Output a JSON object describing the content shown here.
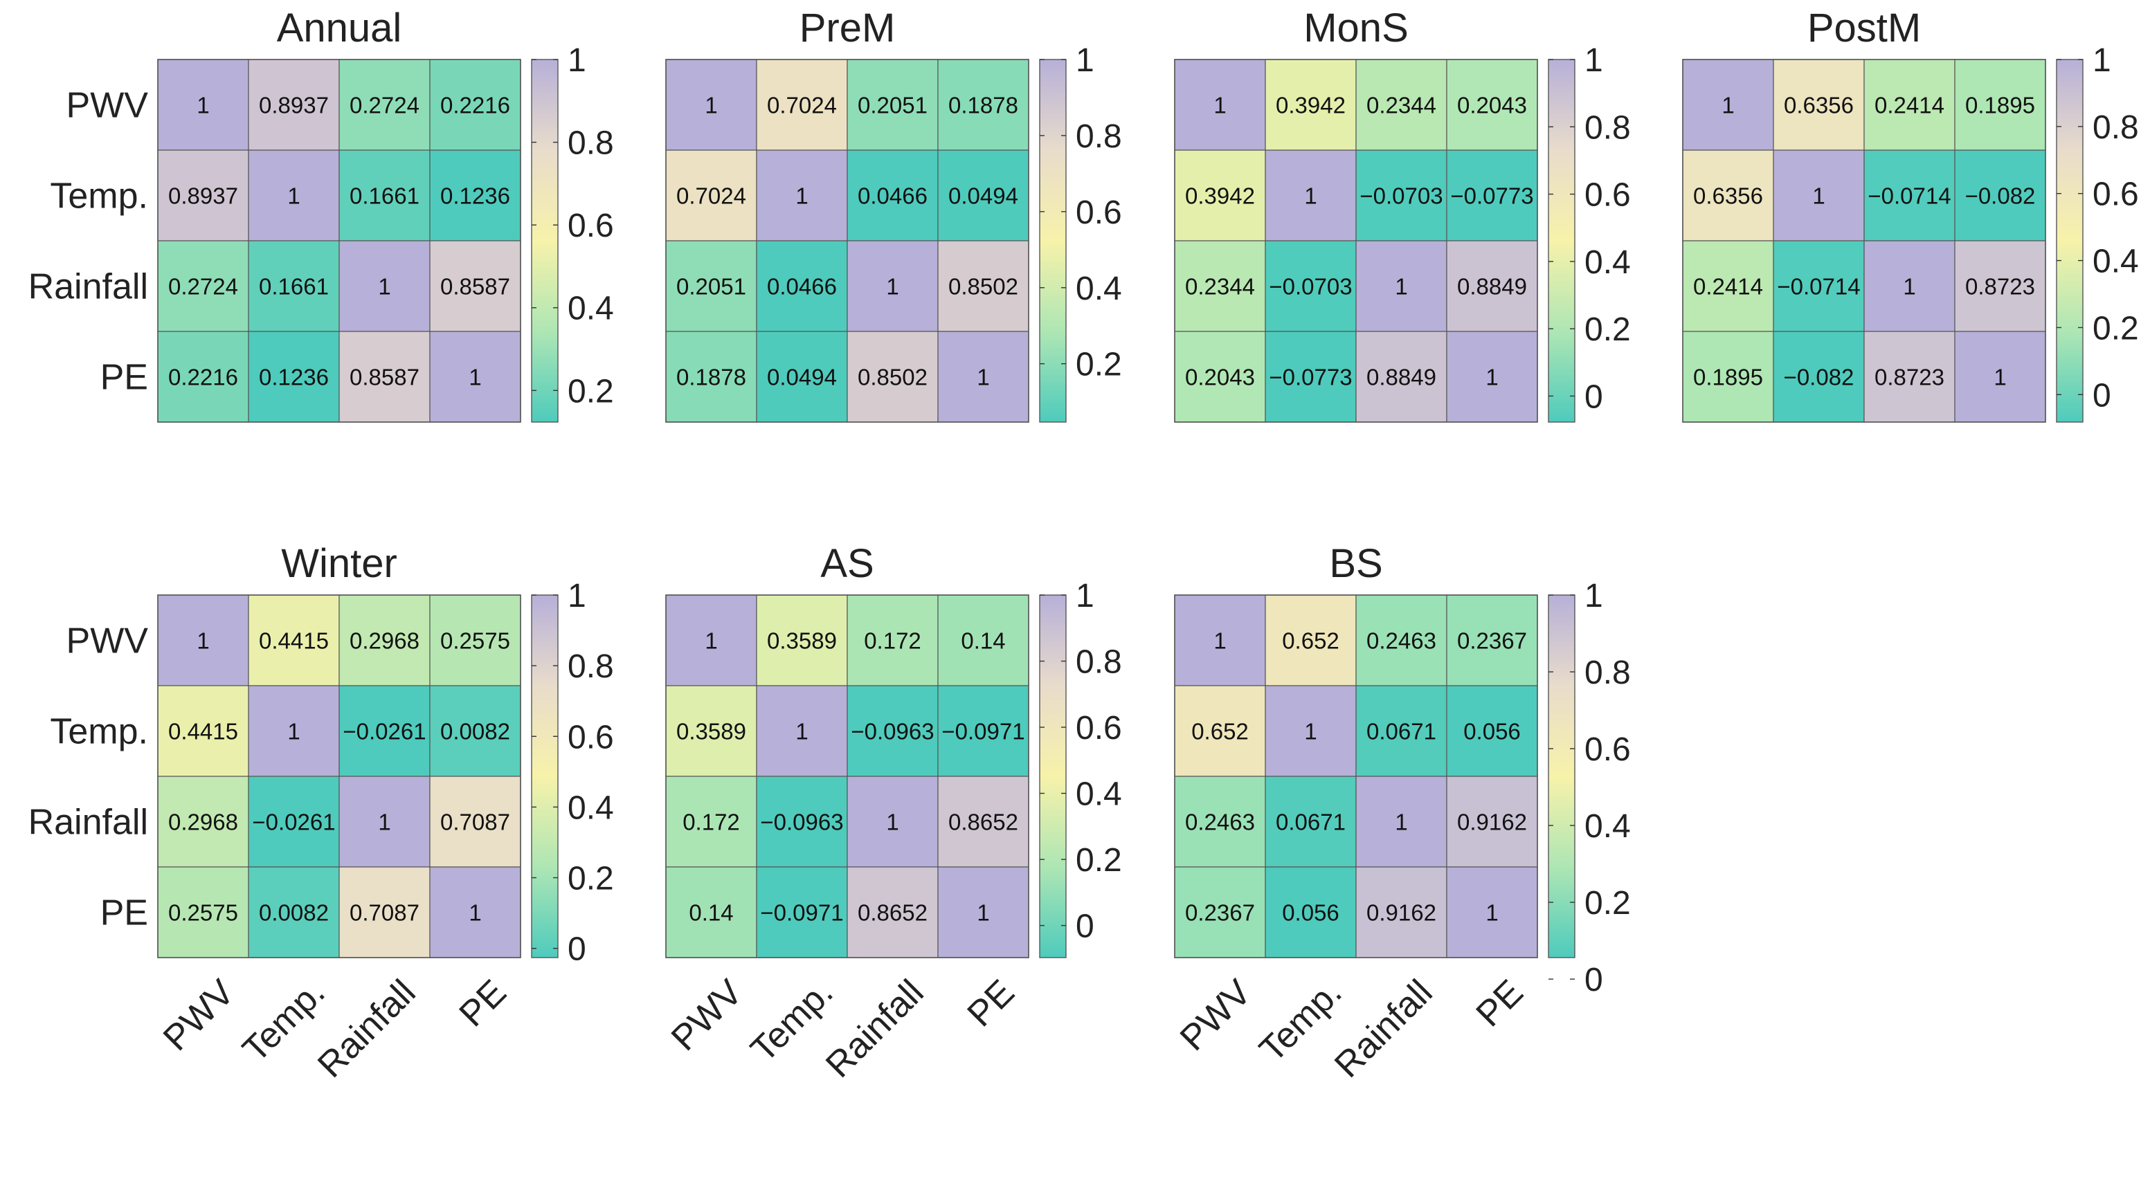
{
  "chart_data": [
    {
      "type": "heatmap",
      "title": "Annual",
      "variables": [
        "PWV",
        "Temp.",
        "Rainfall",
        "PE"
      ],
      "matrix": [
        [
          1,
          0.8937,
          0.2724,
          0.2216
        ],
        [
          0.8937,
          1,
          0.1661,
          0.1236
        ],
        [
          0.2724,
          0.1661,
          1,
          0.8587
        ],
        [
          0.2216,
          0.1236,
          0.8587,
          1
        ]
      ],
      "labels": [
        [
          "1",
          "0.8937",
          "0.2724",
          "0.2216"
        ],
        [
          "0.8937",
          "1",
          "0.1661",
          "0.1236"
        ],
        [
          "0.2724",
          "0.1661",
          "1",
          "0.8587"
        ],
        [
          "0.2216",
          "0.1236",
          "0.8587",
          "1"
        ]
      ],
      "clim": [
        0.1236,
        1
      ],
      "colorbar_ticks": [
        0.2,
        0.4,
        0.6,
        0.8,
        1
      ],
      "colorbar_tick_labels": [
        "0.2",
        "0.4",
        "0.6",
        "0.8",
        "1"
      ],
      "show_x_labels": false
    },
    {
      "type": "heatmap",
      "title": "PreM",
      "variables": [
        "PWV",
        "Temp.",
        "Rainfall",
        "PE"
      ],
      "matrix": [
        [
          1,
          0.7024,
          0.2051,
          0.1878
        ],
        [
          0.7024,
          1,
          0.0466,
          0.0494
        ],
        [
          0.2051,
          0.0466,
          1,
          0.8502
        ],
        [
          0.1878,
          0.0494,
          0.8502,
          1
        ]
      ],
      "labels": [
        [
          "1",
          "0.7024",
          "0.2051",
          "0.1878"
        ],
        [
          "0.7024",
          "1",
          "0.0466",
          "0.0494"
        ],
        [
          "0.2051",
          "0.0466",
          "1",
          "0.8502"
        ],
        [
          "0.1878",
          "0.0494",
          "0.8502",
          "1"
        ]
      ],
      "clim": [
        0.0466,
        1
      ],
      "colorbar_ticks": [
        0.2,
        0.4,
        0.6,
        0.8,
        1
      ],
      "colorbar_tick_labels": [
        "0.2",
        "0.4",
        "0.6",
        "0.8",
        "1"
      ],
      "show_x_labels": false
    },
    {
      "type": "heatmap",
      "title": "MonS",
      "variables": [
        "PWV",
        "Temp.",
        "Rainfall",
        "PE"
      ],
      "matrix": [
        [
          1,
          0.3942,
          0.2344,
          0.2043
        ],
        [
          0.3942,
          1,
          -0.0703,
          -0.0773
        ],
        [
          0.2344,
          -0.0703,
          1,
          0.8849
        ],
        [
          0.2043,
          -0.0773,
          0.8849,
          1
        ]
      ],
      "labels": [
        [
          "1",
          "0.3942",
          "0.2344",
          "0.2043"
        ],
        [
          "0.3942",
          "1",
          "−0.0703",
          "−0.0773"
        ],
        [
          "0.2344",
          "−0.0703",
          "1",
          "0.8849"
        ],
        [
          "0.2043",
          "−0.0773",
          "0.8849",
          "1"
        ]
      ],
      "clim": [
        -0.0773,
        1
      ],
      "colorbar_ticks": [
        0,
        0.2,
        0.4,
        0.6,
        0.8,
        1
      ],
      "colorbar_tick_labels": [
        "0",
        "0.2",
        "0.4",
        "0.6",
        "0.8",
        "1"
      ],
      "show_x_labels": false
    },
    {
      "type": "heatmap",
      "title": "PostM",
      "variables": [
        "PWV",
        "Temp.",
        "Rainfall",
        "PE"
      ],
      "matrix": [
        [
          1,
          0.6356,
          0.2414,
          0.1895
        ],
        [
          0.6356,
          1,
          -0.0714,
          -0.082
        ],
        [
          0.2414,
          -0.0714,
          1,
          0.8723
        ],
        [
          0.1895,
          -0.082,
          0.8723,
          1
        ]
      ],
      "labels": [
        [
          "1",
          "0.6356",
          "0.2414",
          "0.1895"
        ],
        [
          "0.6356",
          "1",
          "−0.0714",
          "−0.082"
        ],
        [
          "0.2414",
          "−0.0714",
          "1",
          "0.8723"
        ],
        [
          "0.1895",
          "−0.082",
          "0.8723",
          "1"
        ]
      ],
      "clim": [
        -0.082,
        1
      ],
      "colorbar_ticks": [
        0,
        0.2,
        0.4,
        0.6,
        0.8,
        1
      ],
      "colorbar_tick_labels": [
        "0",
        "0.2",
        "0.4",
        "0.6",
        "0.8",
        "1"
      ],
      "show_x_labels": false
    },
    {
      "type": "heatmap",
      "title": "Winter",
      "variables": [
        "PWV",
        "Temp.",
        "Rainfall",
        "PE"
      ],
      "matrix": [
        [
          1,
          0.4415,
          0.2968,
          0.2575
        ],
        [
          0.4415,
          1,
          -0.0261,
          0.0082
        ],
        [
          0.2968,
          -0.0261,
          1,
          0.7087
        ],
        [
          0.2575,
          0.0082,
          0.7087,
          1
        ]
      ],
      "labels": [
        [
          "1",
          "0.4415",
          "0.2968",
          "0.2575"
        ],
        [
          "0.4415",
          "1",
          "−0.0261",
          "0.0082"
        ],
        [
          "0.2968",
          "−0.0261",
          "1",
          "0.7087"
        ],
        [
          "0.2575",
          "0.0082",
          "0.7087",
          "1"
        ]
      ],
      "clim": [
        -0.0261,
        1
      ],
      "colorbar_ticks": [
        0,
        0.2,
        0.4,
        0.6,
        0.8,
        1
      ],
      "colorbar_tick_labels": [
        "0",
        "0.2",
        "0.4",
        "0.6",
        "0.8",
        "1"
      ],
      "show_x_labels": true
    },
    {
      "type": "heatmap",
      "title": "AS",
      "variables": [
        "PWV",
        "Temp.",
        "Rainfall",
        "PE"
      ],
      "matrix": [
        [
          1,
          0.3589,
          0.172,
          0.14
        ],
        [
          0.3589,
          1,
          -0.0963,
          -0.0971
        ],
        [
          0.172,
          -0.0963,
          1,
          0.8652
        ],
        [
          0.14,
          -0.0971,
          0.8652,
          1
        ]
      ],
      "labels": [
        [
          "1",
          "0.3589",
          "0.172",
          "0.14"
        ],
        [
          "0.3589",
          "1",
          "−0.0963",
          "−0.0971"
        ],
        [
          "0.172",
          "−0.0963",
          "1",
          "0.8652"
        ],
        [
          "0.14",
          "−0.0971",
          "0.8652",
          "1"
        ]
      ],
      "clim": [
        -0.0971,
        1
      ],
      "colorbar_ticks": [
        0,
        0.2,
        0.4,
        0.6,
        0.8,
        1
      ],
      "colorbar_tick_labels": [
        "0",
        "0.2",
        "0.4",
        "0.6",
        "0.8",
        "1"
      ],
      "show_x_labels": true
    },
    {
      "type": "heatmap",
      "title": "BS",
      "variables": [
        "PWV",
        "Temp.",
        "Rainfall",
        "PE"
      ],
      "matrix": [
        [
          1,
          0.652,
          0.2463,
          0.2367
        ],
        [
          0.652,
          1,
          0.0671,
          0.056
        ],
        [
          0.2463,
          0.0671,
          1,
          0.9162
        ],
        [
          0.2367,
          0.056,
          0.9162,
          1
        ]
      ],
      "labels": [
        [
          "1",
          "0.652",
          "0.2463",
          "0.2367"
        ],
        [
          "0.652",
          "1",
          "0.0671",
          "0.056"
        ],
        [
          "0.2463",
          "0.0671",
          "1",
          "0.9162"
        ],
        [
          "0.2367",
          "0.056",
          "0.9162",
          "1"
        ]
      ],
      "clim": [
        0.056,
        1
      ],
      "colorbar_ticks": [
        0,
        0.2,
        0.4,
        0.6,
        0.8,
        1
      ],
      "colorbar_tick_labels": [
        "0",
        "0.2",
        "0.4",
        "0.6",
        "0.8",
        "1"
      ],
      "show_x_labels": true
    }
  ],
  "colormap": {
    "name": "teal-green-yellow-beige-lavender",
    "stops": [
      [
        0,
        "#4ecbbc"
      ],
      [
        0.25,
        "#aee6b4"
      ],
      [
        0.5,
        "#f7f2aa"
      ],
      [
        0.75,
        "#e8dccb"
      ],
      [
        1,
        "#b7b0d8"
      ]
    ],
    "grid_color": "#555555",
    "text_color": "#222222"
  }
}
